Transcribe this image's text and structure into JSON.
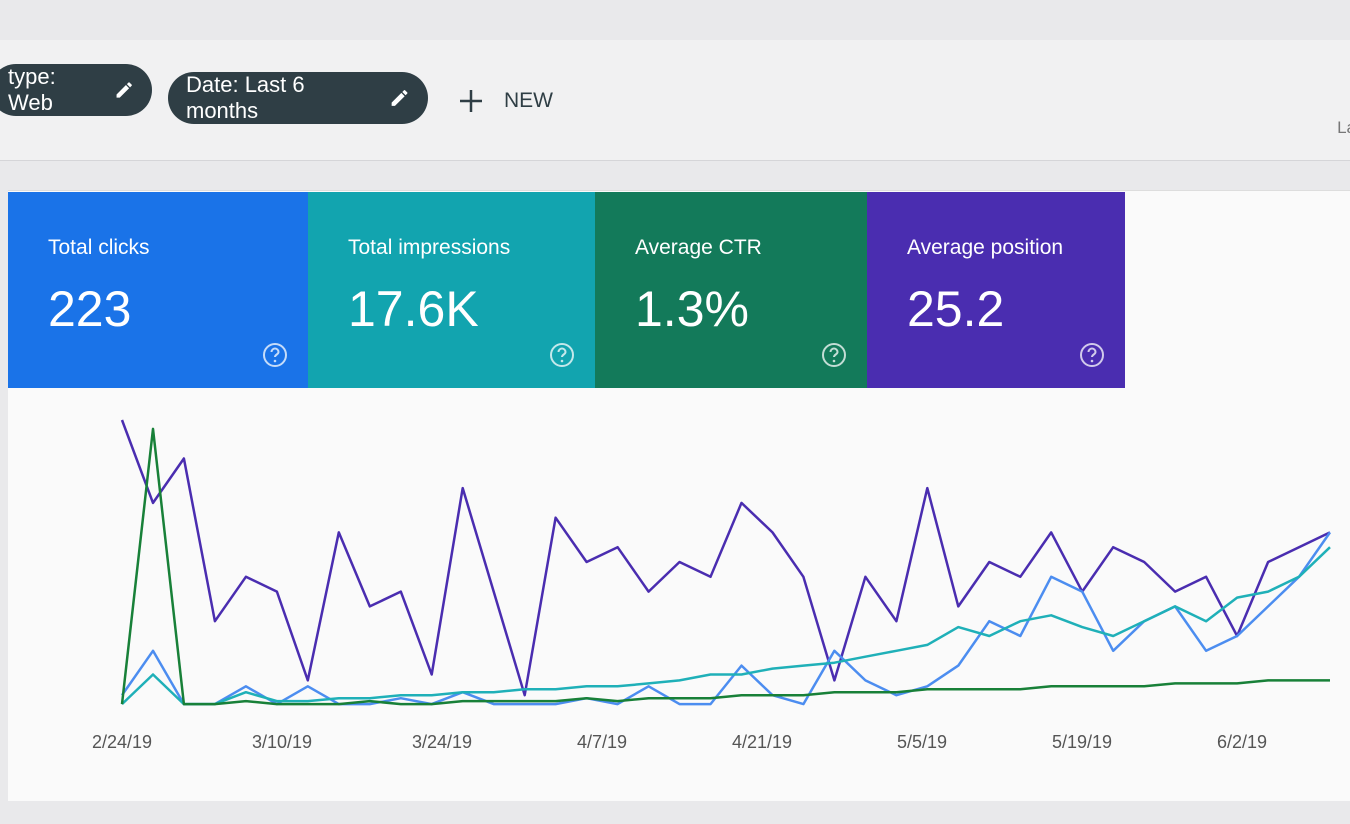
{
  "filters": [
    {
      "label": "type: Web"
    },
    {
      "label": "Date: Last 6 months"
    }
  ],
  "new_button": "NEW",
  "corner_text": "La",
  "metrics": [
    {
      "title": "Total clicks",
      "value": "223",
      "color": "#1a73e8"
    },
    {
      "title": "Total impressions",
      "value": "17.6K",
      "color": "#12a4af"
    },
    {
      "title": "Average CTR",
      "value": "1.3%",
      "color": "#137a5a"
    },
    {
      "title": "Average position",
      "value": "25.2",
      "color": "#4a2db0"
    }
  ],
  "chart_data": {
    "type": "line",
    "xticks": [
      "2/24/19",
      "3/10/19",
      "3/24/19",
      "4/7/19",
      "4/21/19",
      "5/5/19",
      "5/19/19",
      "6/2/19"
    ],
    "series": [
      {
        "color": "#4a2db0",
        "values": [
          98,
          70,
          85,
          30,
          45,
          40,
          10,
          60,
          35,
          40,
          12,
          75,
          40,
          5,
          65,
          50,
          55,
          40,
          50,
          45,
          70,
          60,
          45,
          10,
          45,
          30,
          75,
          35,
          50,
          45,
          60,
          40,
          55,
          50,
          40,
          45,
          25,
          50,
          55,
          60
        ]
      },
      {
        "color": "#4c8df0",
        "values": [
          5,
          20,
          2,
          2,
          8,
          2,
          8,
          2,
          2,
          4,
          2,
          6,
          2,
          2,
          2,
          4,
          2,
          8,
          2,
          2,
          15,
          5,
          2,
          20,
          10,
          5,
          8,
          15,
          30,
          25,
          45,
          40,
          20,
          30,
          35,
          20,
          25,
          35,
          45,
          60
        ]
      },
      {
        "color": "#1fb0b8",
        "values": [
          2,
          12,
          2,
          2,
          6,
          3,
          3,
          4,
          4,
          5,
          5,
          6,
          6,
          7,
          7,
          8,
          8,
          9,
          10,
          12,
          12,
          14,
          15,
          16,
          18,
          20,
          22,
          28,
          25,
          30,
          32,
          28,
          25,
          30,
          35,
          30,
          38,
          40,
          45,
          55
        ]
      },
      {
        "color": "#188038",
        "values": [
          2,
          95,
          2,
          2,
          3,
          2,
          2,
          2,
          3,
          2,
          2,
          3,
          3,
          3,
          3,
          4,
          3,
          4,
          4,
          4,
          5,
          5,
          5,
          6,
          6,
          6,
          7,
          7,
          7,
          7,
          8,
          8,
          8,
          8,
          9,
          9,
          9,
          10,
          10,
          10
        ]
      }
    ]
  }
}
